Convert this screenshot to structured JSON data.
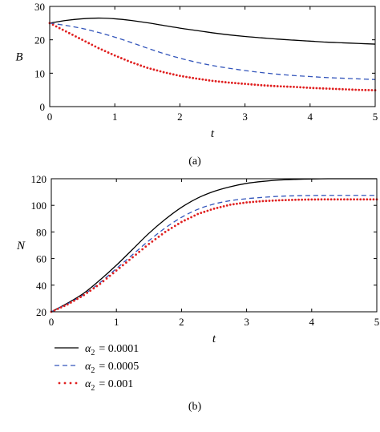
{
  "chart_data": [
    {
      "type": "line",
      "caption": "(a)",
      "xlabel": "t",
      "ylabel": "B",
      "xlim": [
        0,
        5
      ],
      "ylim": [
        0,
        30
      ],
      "x_ticks": [
        "0",
        "1",
        "2",
        "3",
        "4",
        "5"
      ],
      "y_ticks": [
        "0",
        "10",
        "20",
        "30"
      ],
      "x": [
        0,
        0.25,
        0.5,
        0.75,
        1,
        1.25,
        1.5,
        1.75,
        2,
        2.25,
        2.5,
        2.75,
        3,
        3.25,
        3.5,
        3.75,
        4,
        4.25,
        4.5,
        4.75,
        5
      ],
      "series": [
        {
          "name": "α2 = 0.0001",
          "style": "solid",
          "color": "#000000",
          "values": [
            25,
            25.8,
            26.3,
            26.5,
            26.3,
            25.8,
            25.1,
            24.3,
            23.5,
            22.8,
            22.1,
            21.5,
            21.0,
            20.6,
            20.2,
            19.9,
            19.6,
            19.3,
            19.1,
            18.9,
            18.7
          ]
        },
        {
          "name": "α2 = 0.0005",
          "style": "dashed",
          "color": "#3355bb",
          "values": [
            25,
            24.3,
            23.4,
            22.2,
            20.8,
            19.2,
            17.5,
            15.9,
            14.5,
            13.3,
            12.3,
            11.5,
            10.8,
            10.2,
            9.7,
            9.3,
            9.0,
            8.7,
            8.5,
            8.3,
            8.1
          ]
        },
        {
          "name": "α2 = 0.001",
          "style": "dotted",
          "color": "#e02020",
          "values": [
            25,
            22.5,
            20.0,
            17.5,
            15.3,
            13.3,
            11.6,
            10.3,
            9.2,
            8.4,
            7.7,
            7.2,
            6.8,
            6.4,
            6.1,
            5.9,
            5.6,
            5.4,
            5.2,
            5.0,
            4.9
          ]
        }
      ]
    },
    {
      "type": "line",
      "caption": "(b)",
      "xlabel": "t",
      "ylabel": "N",
      "xlim": [
        0,
        5
      ],
      "ylim": [
        20,
        120
      ],
      "x_ticks": [
        "0",
        "1",
        "2",
        "3",
        "4",
        "5"
      ],
      "y_ticks": [
        "20",
        "40",
        "60",
        "80",
        "100",
        "120"
      ],
      "x": [
        0,
        0.25,
        0.5,
        0.75,
        1,
        1.25,
        1.5,
        1.75,
        2,
        2.25,
        2.5,
        2.75,
        3,
        3.25,
        3.5,
        3.75,
        4,
        4.25,
        4.5,
        4.75,
        5
      ],
      "series": [
        {
          "name": "α2 = 0.0001",
          "style": "solid",
          "color": "#000000",
          "values": [
            20,
            26.5,
            34,
            44,
            55,
            67,
            79,
            89.5,
            98.5,
            105.5,
            110.5,
            114,
            116.5,
            118,
            119,
            119.5,
            119.8,
            120,
            120,
            120,
            120
          ]
        },
        {
          "name": "α2 = 0.0005",
          "style": "dashed",
          "color": "#3355bb",
          "values": [
            20,
            26,
            33,
            42,
            52.5,
            63,
            73.5,
            83,
            91,
            97,
            101,
            103.5,
            105,
            106,
            106.8,
            107.2,
            107.4,
            107.5,
            107.5,
            107.5,
            107.5
          ]
        },
        {
          "name": "α2 = 0.001",
          "style": "dotted",
          "color": "#e02020",
          "values": [
            20,
            25.5,
            32.5,
            41,
            51,
            61,
            71,
            80,
            87.5,
            93.5,
            97.5,
            100.5,
            102.2,
            103.2,
            103.8,
            104.2,
            104.4,
            104.5,
            104.5,
            104.5,
            104.5
          ]
        }
      ]
    }
  ],
  "legend": [
    {
      "symbol": "α",
      "sub": "2",
      "value": "= 0.0001",
      "style": "solid",
      "color": "#000000"
    },
    {
      "symbol": "α",
      "sub": "2",
      "value": "= 0.0005",
      "style": "dashed",
      "color": "#3355bb"
    },
    {
      "symbol": "α",
      "sub": "2",
      "value": "= 0.001",
      "style": "dotted",
      "color": "#e02020"
    }
  ]
}
